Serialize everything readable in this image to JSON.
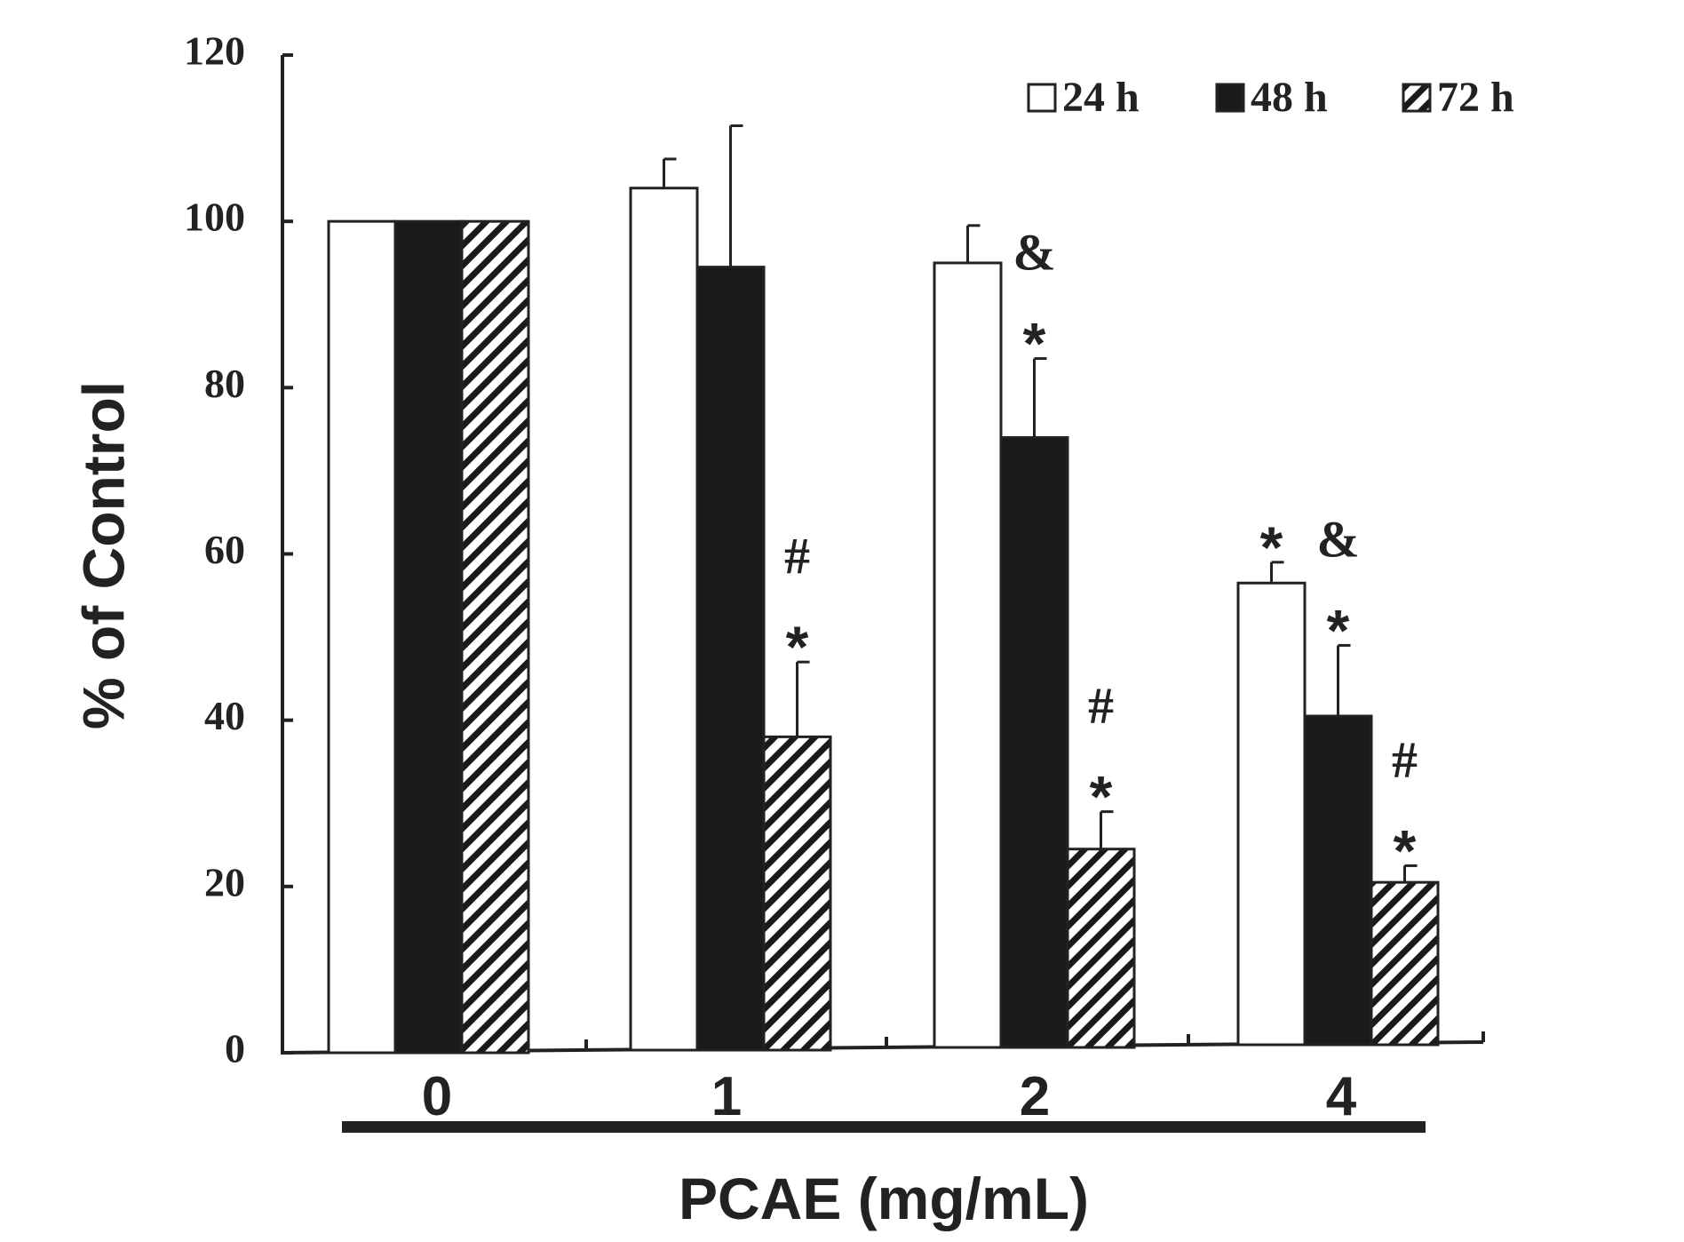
{
  "chart_data": {
    "type": "bar",
    "title": "",
    "xlabel": "PCAE (mg/mL)",
    "ylabel": "% of Control",
    "categories": [
      "0",
      "1",
      "2",
      "4"
    ],
    "ylim": [
      0,
      120
    ],
    "yticks": [
      0,
      20,
      40,
      60,
      80,
      100,
      120
    ],
    "grid": false,
    "legend_position": "top-right",
    "series": [
      {
        "name": "24 h",
        "fill": "white",
        "values": [
          100,
          104,
          95,
          56.5
        ],
        "errors": [
          0,
          3.5,
          4.5,
          2.5
        ]
      },
      {
        "name": "48 h",
        "fill": "black",
        "values": [
          100,
          94.5,
          74,
          40.5
        ],
        "errors": [
          0,
          17,
          9.5,
          8.5
        ]
      },
      {
        "name": "72 h",
        "fill": "hatched",
        "values": [
          100,
          38,
          24.5,
          20.5
        ],
        "errors": [
          0,
          9,
          4.5,
          2
        ]
      }
    ],
    "annotations": [
      {
        "category": "1",
        "series": "72 h",
        "marks": [
          "#",
          "*"
        ]
      },
      {
        "category": "2",
        "series": "48 h",
        "marks": [
          "&",
          "*"
        ]
      },
      {
        "category": "2",
        "series": "72 h",
        "marks": [
          "#",
          "*"
        ]
      },
      {
        "category": "4",
        "series": "24 h",
        "marks": [
          "*"
        ]
      },
      {
        "category": "4",
        "series": "48 h",
        "marks": [
          "&",
          "*"
        ]
      },
      {
        "category": "4",
        "series": "72 h",
        "marks": [
          "#",
          "*"
        ]
      }
    ],
    "colors": {
      "line": "#222222",
      "dark_fill": "#1a1a1a",
      "light_fill": "#ffffff"
    }
  }
}
